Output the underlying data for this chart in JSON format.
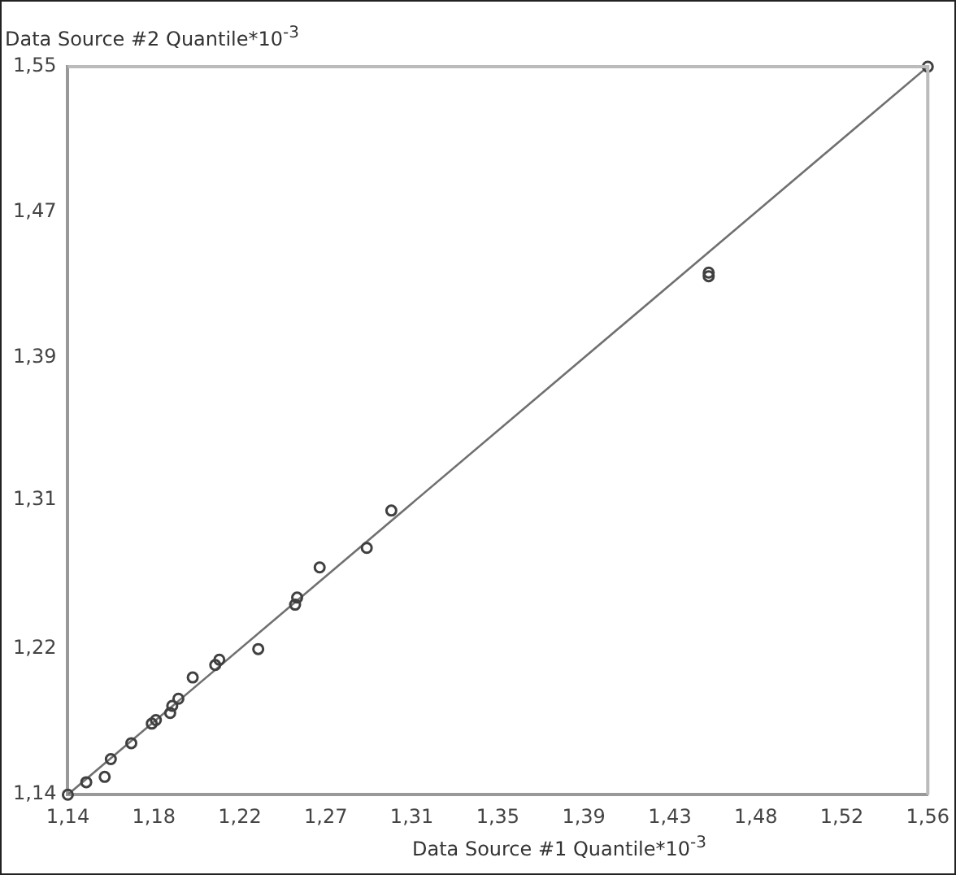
{
  "chart_data": {
    "type": "scatter",
    "xlabel": "Data Source #1 Quantile*10$^{-3}$",
    "ylabel": "Data Source #2 Quantile*10$^{-3}$",
    "xlim": [
      1.14,
      1.56
    ],
    "ylim": [
      1.14,
      1.55
    ],
    "xticks": [
      {
        "value": 1.14,
        "label": "1,14"
      },
      {
        "value": 1.182,
        "label": "1,18"
      },
      {
        "value": 1.224,
        "label": "1,22"
      },
      {
        "value": 1.266,
        "label": "1,27"
      },
      {
        "value": 1.308,
        "label": "1,31"
      },
      {
        "value": 1.35,
        "label": "1,35"
      },
      {
        "value": 1.392,
        "label": "1,39"
      },
      {
        "value": 1.434,
        "label": "1,43"
      },
      {
        "value": 1.476,
        "label": "1,48"
      },
      {
        "value": 1.518,
        "label": "1,52"
      },
      {
        "value": 1.56,
        "label": "1,56"
      }
    ],
    "yticks": [
      {
        "value": 1.14,
        "label": "1,14"
      },
      {
        "value": 1.222,
        "label": "1,22"
      },
      {
        "value": 1.306,
        "label": "1,31"
      },
      {
        "value": 1.386,
        "label": "1,39"
      },
      {
        "value": 1.468,
        "label": "1,47"
      },
      {
        "value": 1.55,
        "label": "1,55"
      }
    ],
    "grid": false,
    "legend": false,
    "marker": "circle",
    "series": [
      {
        "type": "line",
        "marker": "none",
        "color": "#707070",
        "x": [
          1.14,
          1.56
        ],
        "values": [
          1.14,
          1.55
        ]
      },
      {
        "color": "#404040",
        "x": [
          1.14,
          1.149,
          1.158,
          1.161,
          1.171,
          1.181,
          1.183,
          1.19,
          1.191,
          1.194,
          1.201,
          1.212,
          1.214,
          1.233,
          1.251,
          1.252,
          1.263,
          1.286,
          1.298,
          1.453,
          1.453,
          1.56
        ],
        "values": [
          1.14,
          1.147,
          1.15,
          1.16,
          1.169,
          1.18,
          1.182,
          1.186,
          1.19,
          1.194,
          1.206,
          1.213,
          1.216,
          1.222,
          1.247,
          1.251,
          1.268,
          1.279,
          1.3,
          1.432,
          1.434,
          1.55
        ]
      }
    ]
  }
}
